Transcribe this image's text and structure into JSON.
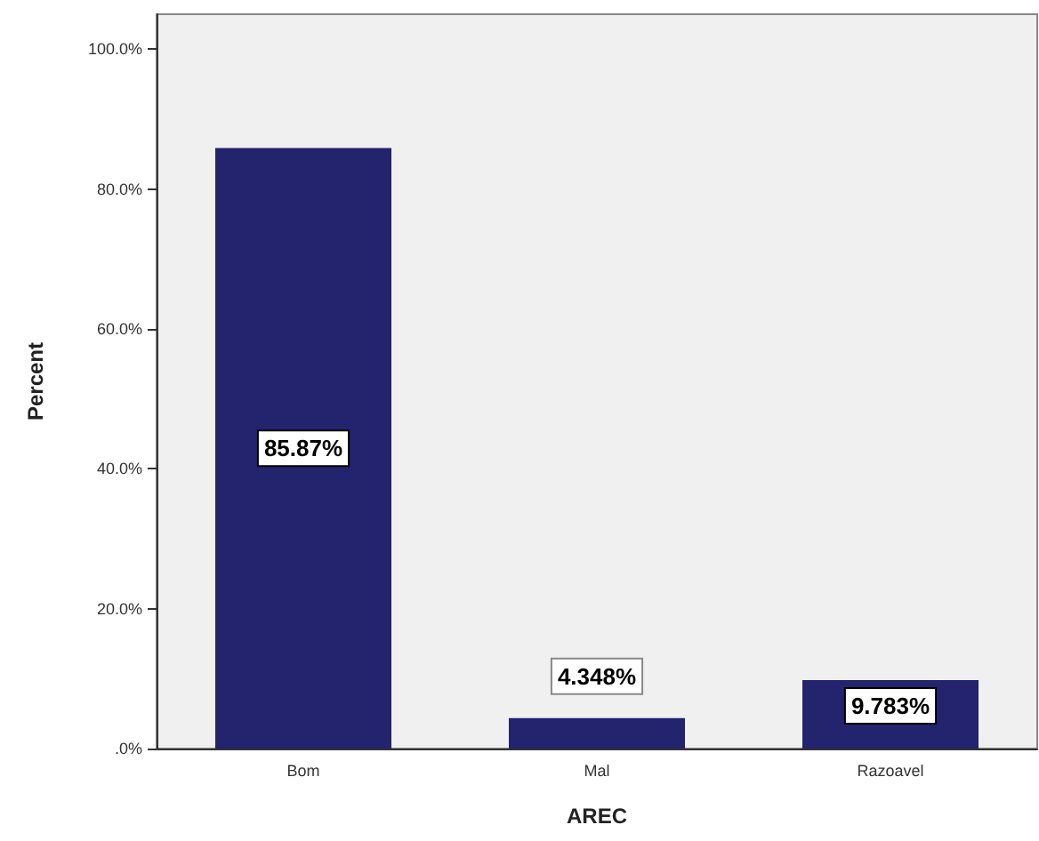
{
  "chart_data": {
    "type": "bar",
    "xlabel": "AREC",
    "ylabel": "Percent",
    "categories": [
      "Bom",
      "Mal",
      "Razoavel"
    ],
    "values": [
      85.87,
      4.348,
      9.783
    ],
    "value_labels": [
      "85.87%",
      "4.348%",
      "9.783%"
    ],
    "color": "#23236e",
    "ylim": [
      0,
      105
    ],
    "yticks": [
      {
        "value": 0,
        "label": ".0%"
      },
      {
        "value": 20,
        "label": "20.0%"
      },
      {
        "value": 40,
        "label": "40.0%"
      },
      {
        "value": 60,
        "label": "60.0%"
      },
      {
        "value": 80,
        "label": "80.0%"
      },
      {
        "value": 100,
        "label": "100.0%"
      }
    ],
    "grid": false
  }
}
